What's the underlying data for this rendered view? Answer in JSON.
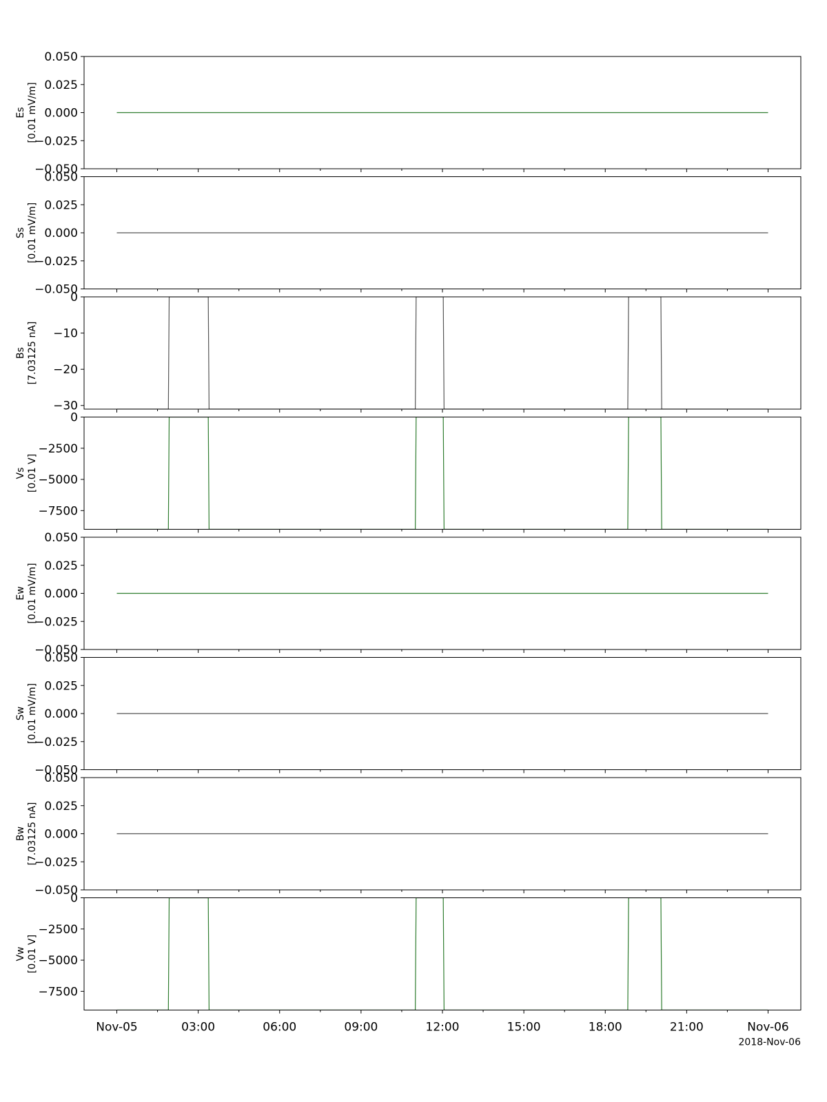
{
  "chart_data": {
    "type": "line",
    "x_axis": {
      "start": "2018-11-05 00:00",
      "end": "2018-11-06 00:00",
      "tick_hours": [
        0,
        3,
        6,
        9,
        12,
        15,
        18,
        21,
        24
      ],
      "tick_labels": [
        "Nov-05",
        "03:00",
        "06:00",
        "09:00",
        "12:00",
        "15:00",
        "18:00",
        "21:00",
        "Nov-06"
      ],
      "minor_tick_hours": [
        1.5,
        4.5,
        7.5,
        10.5,
        13.5,
        16.5,
        19.5,
        22.5
      ],
      "offset_label": "2018-Nov-06"
    },
    "panels": [
      {
        "name": "Es",
        "ylabel": [
          "Es",
          "[0.01 mV/m]"
        ],
        "color": "#2f7d2f",
        "ylim": [
          -0.05,
          0.05
        ],
        "yticks": [
          0.05,
          0.025,
          0,
          -0.025,
          -0.05
        ],
        "ytick_labels": [
          "0.050",
          "0.025",
          "0.000",
          "−0.025",
          "−0.050"
        ],
        "x_hours": [
          0,
          24
        ],
        "y": [
          0,
          0
        ]
      },
      {
        "name": "Ss",
        "ylabel": [
          "Ss",
          "[0.01 mV/m]"
        ],
        "color": "#555555",
        "ylim": [
          -0.05,
          0.05
        ],
        "yticks": [
          0.05,
          0.025,
          0,
          -0.025,
          -0.05
        ],
        "ytick_labels": [
          "0.050",
          "0.025",
          "0.000",
          "−0.025",
          "−0.050"
        ],
        "x_hours": [
          0,
          24
        ],
        "y": [
          0,
          0
        ]
      },
      {
        "name": "Bs",
        "ylabel": [
          "Bs",
          "[7.03125 nA]"
        ],
        "color": "#555555",
        "ylim": [
          -31,
          0
        ],
        "yticks": [
          0,
          -10,
          -20,
          -30
        ],
        "ytick_labels": [
          "0",
          "−10",
          "−20",
          "−30"
        ],
        "x_hours": [
          0,
          1.9,
          1.93,
          3.37,
          3.4,
          11.0,
          11.03,
          12.03,
          12.06,
          18.83,
          18.86,
          20.05,
          20.08,
          24
        ],
        "y": [
          -31,
          -31,
          0,
          0,
          -31,
          -31,
          0,
          0,
          -31,
          -31,
          0,
          0,
          -31,
          -31
        ]
      },
      {
        "name": "Vs",
        "ylabel": [
          "Vs",
          "[0.01 V]"
        ],
        "color": "#2f7d2f",
        "ylim": [
          -9000,
          0
        ],
        "yticks": [
          0,
          -2500,
          -5000,
          -7500
        ],
        "ytick_labels": [
          "0",
          "−2500",
          "−5000",
          "−7500"
        ],
        "x_hours": [
          0,
          1.9,
          1.93,
          3.37,
          3.4,
          11.0,
          11.03,
          12.03,
          12.06,
          18.83,
          18.86,
          20.05,
          20.08,
          24
        ],
        "y": [
          -9000,
          -9000,
          0,
          0,
          -9000,
          -9000,
          0,
          0,
          -9000,
          -9000,
          0,
          0,
          -9000,
          -9000
        ]
      },
      {
        "name": "Ew",
        "ylabel": [
          "Ew",
          "[0.01 mV/m]"
        ],
        "color": "#2f7d2f",
        "ylim": [
          -0.05,
          0.05
        ],
        "yticks": [
          0.05,
          0.025,
          0,
          -0.025,
          -0.05
        ],
        "ytick_labels": [
          "0.050",
          "0.025",
          "0.000",
          "−0.025",
          "−0.050"
        ],
        "x_hours": [
          0,
          24
        ],
        "y": [
          0,
          0
        ]
      },
      {
        "name": "Sw",
        "ylabel": [
          "Sw",
          "[0.01 mV/m]"
        ],
        "color": "#555555",
        "ylim": [
          -0.05,
          0.05
        ],
        "yticks": [
          0.05,
          0.025,
          0,
          -0.025,
          -0.05
        ],
        "ytick_labels": [
          "0.050",
          "0.025",
          "0.000",
          "−0.025",
          "−0.050"
        ],
        "x_hours": [
          0,
          24
        ],
        "y": [
          0,
          0
        ]
      },
      {
        "name": "Bw",
        "ylabel": [
          "Bw",
          "[7.03125 nA]"
        ],
        "color": "#555555",
        "ylim": [
          -0.05,
          0.05
        ],
        "yticks": [
          0.05,
          0.025,
          0,
          -0.025,
          -0.05
        ],
        "ytick_labels": [
          "0.050",
          "0.025",
          "0.000",
          "−0.025",
          "−0.050"
        ],
        "x_hours": [
          0,
          24
        ],
        "y": [
          0,
          0
        ]
      },
      {
        "name": "Vw",
        "ylabel": [
          "Vw",
          "[0.01 V]"
        ],
        "color": "#2f7d2f",
        "ylim": [
          -9000,
          0
        ],
        "yticks": [
          0,
          -2500,
          -5000,
          -7500
        ],
        "ytick_labels": [
          "0",
          "−2500",
          "−5000",
          "−7500"
        ],
        "x_hours": [
          0,
          1.9,
          1.93,
          3.37,
          3.4,
          11.0,
          11.03,
          12.03,
          12.06,
          18.83,
          18.86,
          20.05,
          20.08,
          24
        ],
        "y": [
          -9000,
          -9000,
          0,
          0,
          -9000,
          -9000,
          0,
          0,
          -9000,
          -9000,
          0,
          0,
          -9000,
          -9000
        ]
      }
    ]
  }
}
